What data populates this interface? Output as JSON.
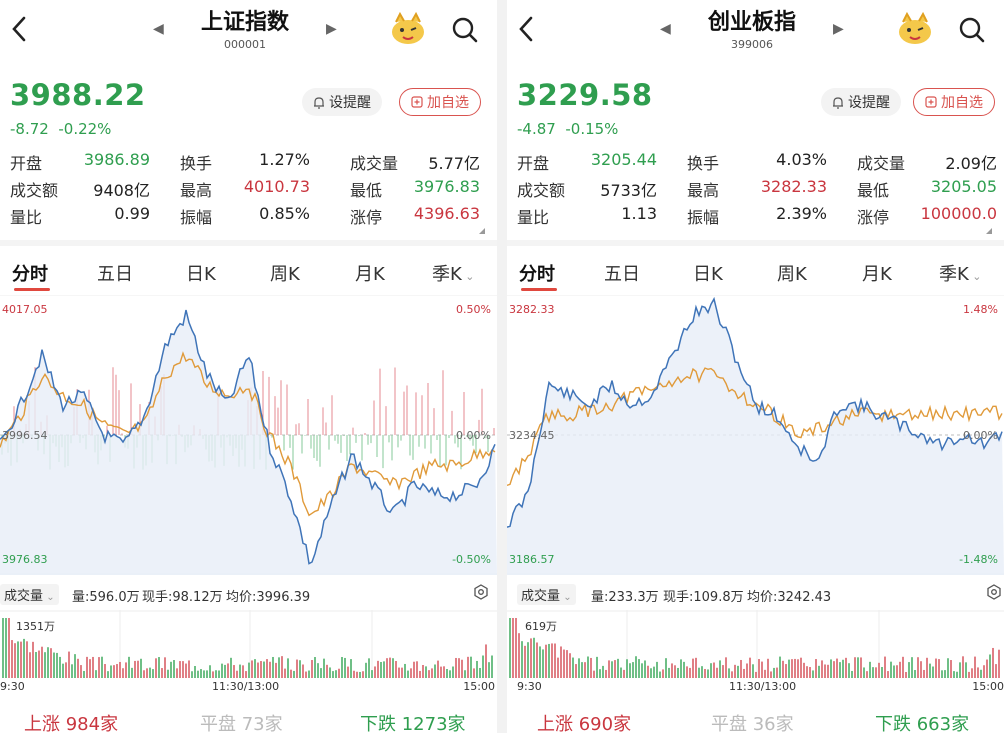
{
  "panels": [
    {
      "title": "上证指数",
      "code": "000001",
      "price": "3988.22",
      "change": "-8.72",
      "change_pct": "-0.22%",
      "alert_label": "设提醒",
      "add_label": "加自选",
      "stats": [
        [
          [
            "开盘",
            "3986.89",
            "g"
          ],
          [
            "换手",
            "1.27%",
            "k"
          ],
          [
            "成交量",
            "5.77亿",
            "k"
          ]
        ],
        [
          [
            "成交额",
            "9408亿",
            "k"
          ],
          [
            "最高",
            "4010.73",
            "r"
          ],
          [
            "最低",
            "3976.83",
            "g"
          ]
        ],
        [
          [
            "量比",
            "0.99",
            "k"
          ],
          [
            "振幅",
            "0.85%",
            "k"
          ],
          [
            "涨停",
            "4396.63",
            "r"
          ]
        ]
      ],
      "tabs": [
        "分时",
        "五日",
        "日K",
        "周K",
        "月K",
        "季K"
      ],
      "axis": {
        "high": "4017.05",
        "mid": "3996.54",
        "low": "3976.83",
        "pct_high": "0.50%",
        "pct_mid": "0.00%",
        "pct_low": "-0.50%"
      },
      "volume_bar": {
        "selector": "成交量",
        "vol": "量:596.0万",
        "now": "现手:98.12万",
        "avg": "均价:3996.39"
      },
      "vol_max_label": "1351万",
      "time": {
        "start": "9:30",
        "mid": "11:30/13:00",
        "end": "15:00"
      },
      "breadth": {
        "up_label": "上涨",
        "up": "984家",
        "flat_label": "平盘",
        "flat": "73家",
        "down_label": "下跌",
        "down": "1273家"
      }
    },
    {
      "title": "创业板指",
      "code": "399006",
      "price": "3229.58",
      "change": "-4.87",
      "change_pct": "-0.15%",
      "alert_label": "设提醒",
      "add_label": "加自选",
      "stats": [
        [
          [
            "开盘",
            "3205.44",
            "g"
          ],
          [
            "换手",
            "4.03%",
            "k"
          ],
          [
            "成交量",
            "2.09亿",
            "k"
          ]
        ],
        [
          [
            "成交额",
            "5733亿",
            "k"
          ],
          [
            "最高",
            "3282.33",
            "r"
          ],
          [
            "最低",
            "3205.05",
            "g"
          ]
        ],
        [
          [
            "量比",
            "1.13",
            "k"
          ],
          [
            "振幅",
            "2.39%",
            "k"
          ],
          [
            "涨停",
            "100000.0",
            "r"
          ]
        ]
      ],
      "tabs": [
        "分时",
        "五日",
        "日K",
        "周K",
        "月K",
        "季K"
      ],
      "axis": {
        "high": "3282.33",
        "mid": "3234.45",
        "low": "3186.57",
        "pct_high": "1.48%",
        "pct_mid": "0.00%",
        "pct_low": "-1.48%"
      },
      "volume_bar": {
        "selector": "成交量",
        "vol": "量:233.3万",
        "now": "现手:109.8万",
        "avg": "均价:3242.43"
      },
      "vol_max_label": "619万",
      "time": {
        "start": "9:30",
        "mid": "11:30/13:00",
        "end": "15:00"
      },
      "breadth": {
        "up_label": "上涨",
        "up": "690家",
        "flat_label": "平盘",
        "flat": "36家",
        "down_label": "下跌",
        "down": "663家"
      }
    }
  ],
  "colors": {
    "up": "#c9363f",
    "down": "#2f9e4f",
    "price_line": "#3f74b8",
    "avg_line": "#e09a3a",
    "accent": "#e0483e"
  },
  "icons": {
    "back": "back-arrow-icon",
    "search": "search-icon",
    "mascot": "mascot-icon",
    "bell": "bell-icon",
    "plus": "plus-box-icon",
    "settings": "settings-icon"
  }
}
